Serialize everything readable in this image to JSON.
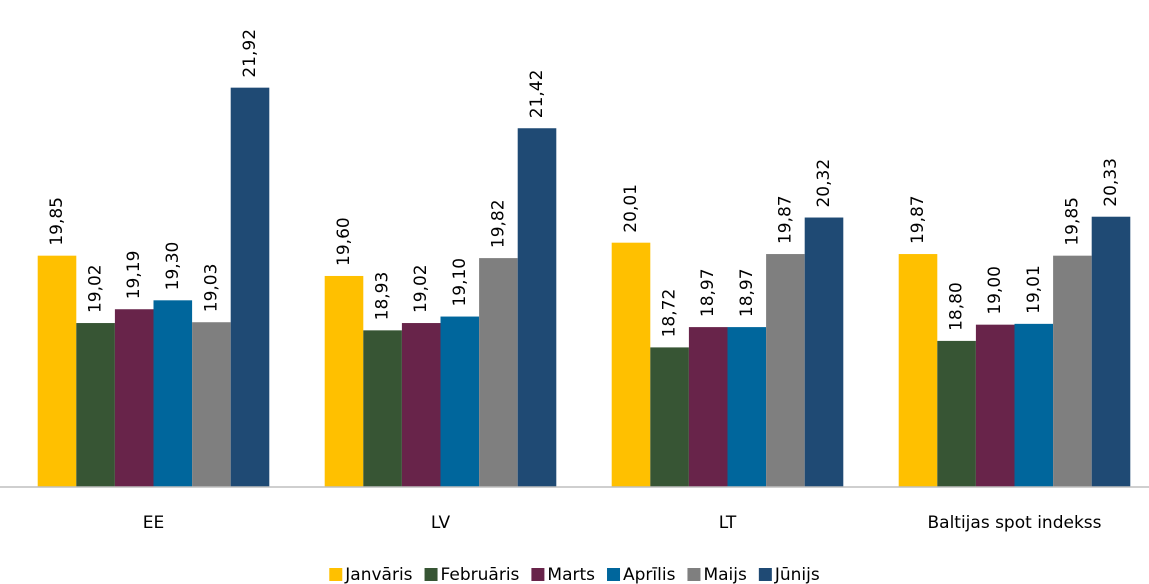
{
  "chart_data": {
    "type": "bar",
    "categories": [
      "EE",
      "LV",
      "LT",
      "Baltijas spot indekss"
    ],
    "series": [
      {
        "name": "Janvāris",
        "color": "#ffc000",
        "values": [
          19.85,
          19.6,
          20.01,
          19.87
        ],
        "value_labels": [
          "19,85",
          "19,60",
          "20,01",
          "19,87"
        ]
      },
      {
        "name": "Februāris",
        "color": "#375534",
        "values": [
          19.02,
          18.93,
          18.72,
          18.8
        ],
        "value_labels": [
          "19,02",
          "18,93",
          "18,72",
          "18,80"
        ]
      },
      {
        "name": "Marts",
        "color": "#68244a",
        "values": [
          19.19,
          19.02,
          18.97,
          19.0
        ],
        "value_labels": [
          "19,19",
          "19,02",
          "18,97",
          "19,00"
        ]
      },
      {
        "name": "Aprīlis",
        "color": "#00669c",
        "values": [
          19.3,
          19.1,
          18.97,
          19.01
        ],
        "value_labels": [
          "19,30",
          "19,10",
          "18,97",
          "19,01"
        ]
      },
      {
        "name": "Maijs",
        "color": "#7f7f7f",
        "values": [
          19.03,
          19.82,
          19.87,
          19.85
        ],
        "value_labels": [
          "19,03",
          "19,82",
          "19,87",
          "19,85"
        ]
      },
      {
        "name": "Jūnijs",
        "color": "#1f4a74",
        "values": [
          21.92,
          21.42,
          20.32,
          20.33
        ],
        "value_labels": [
          "21,92",
          "21,42",
          "20,32",
          "20,33"
        ]
      }
    ],
    "ylim": [
      17,
      23
    ],
    "legend": "bottom"
  }
}
